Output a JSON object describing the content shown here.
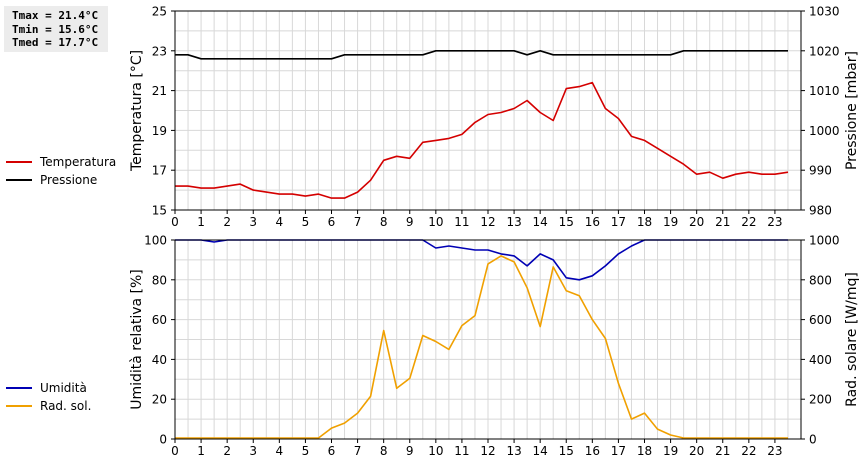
{
  "stats": {
    "tmax": "Tmax = 21.4°C",
    "tmin": "Tmin = 15.6°C",
    "tmed": "Tmed = 17.7°C"
  },
  "colors": {
    "temperature": "#d40000",
    "pressure": "#000000",
    "humidity": "#0000b4",
    "solar": "#f0a000",
    "grid": "#d8d8d8"
  },
  "chart_data": [
    {
      "type": "line",
      "x_ticks": [
        "0",
        "1",
        "2",
        "3",
        "4",
        "5",
        "6",
        "7",
        "8",
        "9",
        "10",
        "11",
        "12",
        "13",
        "14",
        "15",
        "16",
        "17",
        "18",
        "19",
        "20",
        "21",
        "22",
        "23"
      ],
      "xlim": [
        0,
        24
      ],
      "ylabel": "Temperatura [°C]",
      "ylim": [
        15,
        25
      ],
      "y_ticks": [
        "15",
        "17",
        "19",
        "21",
        "23",
        "25"
      ],
      "y2label": "Pressione [mbar]",
      "y2lim": [
        980,
        1030
      ],
      "y2_ticks": [
        "980",
        "990",
        "1000",
        "1010",
        "1020",
        "1030"
      ],
      "legend_position": "left",
      "series": [
        {
          "name": "Temperatura",
          "axis": "left",
          "x": [
            0,
            0.5,
            1,
            1.5,
            2,
            2.5,
            3,
            3.5,
            4,
            4.5,
            5,
            5.5,
            6,
            6.5,
            7,
            7.5,
            8,
            8.5,
            9,
            9.5,
            10,
            10.5,
            11,
            11.5,
            12,
            12.5,
            13,
            13.5,
            14,
            14.5,
            15,
            15.5,
            16,
            16.5,
            17,
            17.5,
            18,
            18.5,
            19,
            19.5,
            20,
            20.5,
            21,
            21.5,
            22,
            22.5,
            23,
            23.5
          ],
          "values": [
            16.2,
            16.2,
            16.1,
            16.1,
            16.2,
            16.3,
            16.0,
            15.9,
            15.8,
            15.8,
            15.7,
            15.8,
            15.6,
            15.6,
            15.9,
            16.5,
            17.5,
            17.7,
            17.6,
            18.4,
            18.5,
            18.6,
            18.8,
            19.4,
            19.8,
            19.9,
            20.1,
            20.5,
            19.9,
            19.5,
            21.1,
            21.2,
            21.4,
            20.1,
            19.6,
            18.7,
            18.5,
            18.1,
            17.7,
            17.3,
            16.8,
            16.9,
            16.6,
            16.8,
            16.9,
            16.8,
            16.8,
            16.9
          ]
        },
        {
          "name": "Pressione",
          "axis": "right",
          "x": [
            0,
            0.5,
            1,
            1.5,
            2,
            2.5,
            3,
            3.5,
            4,
            4.5,
            5,
            5.5,
            6,
            6.5,
            7,
            7.5,
            8,
            8.5,
            9,
            9.5,
            10,
            10.5,
            11,
            11.5,
            12,
            12.5,
            13,
            13.5,
            14,
            14.5,
            15,
            15.5,
            16,
            16.5,
            17,
            17.5,
            18,
            18.5,
            19,
            19.5,
            20,
            20.5,
            21,
            21.5,
            22,
            22.5,
            23,
            23.5
          ],
          "values": [
            1019,
            1019,
            1018,
            1018,
            1018,
            1018,
            1018,
            1018,
            1018,
            1018,
            1018,
            1018,
            1018,
            1019,
            1019,
            1019,
            1019,
            1019,
            1019,
            1019,
            1020,
            1020,
            1020,
            1020,
            1020,
            1020,
            1020,
            1019,
            1020,
            1019,
            1019,
            1019,
            1019,
            1019,
            1019,
            1019,
            1019,
            1019,
            1019,
            1020,
            1020,
            1020,
            1020,
            1020,
            1020,
            1020,
            1020,
            1020
          ]
        }
      ]
    },
    {
      "type": "line",
      "x_ticks": [
        "0",
        "1",
        "2",
        "3",
        "4",
        "5",
        "6",
        "7",
        "8",
        "9",
        "10",
        "11",
        "12",
        "13",
        "14",
        "15",
        "16",
        "17",
        "18",
        "19",
        "20",
        "21",
        "22",
        "23"
      ],
      "xlim": [
        0,
        24
      ],
      "ylabel": "Umidità relativa [%]",
      "ylim": [
        0,
        100
      ],
      "y_ticks": [
        "0",
        "20",
        "40",
        "60",
        "80",
        "100"
      ],
      "y2label": "Rad. solare [W/mq]",
      "y2lim": [
        0,
        1000
      ],
      "y2_ticks": [
        "0",
        "200",
        "400",
        "600",
        "800",
        "1000"
      ],
      "legend_position": "left",
      "series": [
        {
          "name": "Umidità",
          "axis": "left",
          "x": [
            0,
            0.5,
            1,
            1.5,
            2,
            2.5,
            3,
            3.5,
            4,
            4.5,
            5,
            5.5,
            6,
            6.5,
            7,
            7.5,
            8,
            8.5,
            9,
            9.5,
            10,
            10.5,
            11,
            11.5,
            12,
            12.5,
            13,
            13.5,
            14,
            14.5,
            15,
            15.5,
            16,
            16.5,
            17,
            17.5,
            18,
            18.5,
            19,
            19.5,
            20,
            20.5,
            21,
            21.5,
            22,
            22.5,
            23,
            23.5
          ],
          "values": [
            100,
            100,
            100,
            99,
            100,
            100,
            100,
            100,
            100,
            100,
            100,
            100,
            100,
            100,
            100,
            100,
            100,
            100,
            100,
            100,
            96,
            97,
            96,
            95,
            95,
            93,
            92,
            87,
            93,
            90,
            81,
            80,
            82,
            87,
            93,
            97,
            100,
            100,
            100,
            100,
            100,
            100,
            100,
            100,
            100,
            100,
            100,
            100
          ]
        },
        {
          "name": "Rad. sol.",
          "axis": "right",
          "x": [
            0,
            0.5,
            1,
            1.5,
            2,
            2.5,
            3,
            3.5,
            4,
            4.5,
            5,
            5.5,
            6,
            6.5,
            7,
            7.5,
            8,
            8.5,
            9,
            9.5,
            10,
            10.5,
            11,
            11.5,
            12,
            12.5,
            13,
            13.5,
            14,
            14.5,
            15,
            15.5,
            16,
            16.5,
            17,
            17.5,
            18,
            18.5,
            19,
            19.5,
            20,
            20.5,
            21,
            21.5,
            22,
            22.5,
            23,
            23.5
          ],
          "values": [
            5,
            5,
            5,
            5,
            5,
            5,
            5,
            5,
            5,
            5,
            5,
            5,
            55,
            80,
            130,
            215,
            545,
            255,
            305,
            520,
            490,
            450,
            570,
            620,
            880,
            920,
            890,
            760,
            565,
            865,
            745,
            720,
            600,
            505,
            280,
            100,
            130,
            50,
            20,
            5,
            5,
            5,
            5,
            5,
            5,
            5,
            5,
            5
          ]
        }
      ]
    }
  ]
}
